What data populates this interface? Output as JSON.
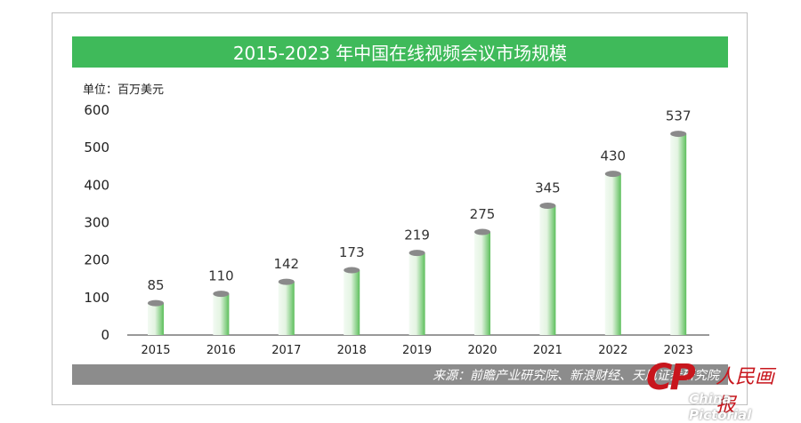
{
  "colors": {
    "title_bg": "#3fba5a",
    "bar_light": "#f2faf2",
    "bar_dark": "#5dbf5c",
    "cap": "#8a8a8a",
    "source_bg": "#8c8c8c",
    "watermark": "#c8161d"
  },
  "header": {
    "title": "2015-2023 年中国在线视频会议市场规模"
  },
  "unit_label": "单位：百万美元",
  "source": "来源：前瞻产业研究院、新浪财经、天风证券研究院",
  "watermark": {
    "mark": "CP",
    "text": "人民画报",
    "sub": "China Pictorial"
  },
  "chart_data": {
    "type": "bar",
    "title": "2015-2023 年中国在线视频会议市场规模",
    "ylabel": "单位：百万美元",
    "categories": [
      "2015",
      "2016",
      "2017",
      "2018",
      "2019",
      "2020",
      "2021",
      "2022",
      "2023"
    ],
    "values": [
      85,
      110,
      142,
      173,
      219,
      275,
      345,
      430,
      537
    ],
    "yticks": [
      0,
      100,
      200,
      300,
      400,
      500,
      600
    ],
    "ylim": [
      0,
      600
    ],
    "grid": false,
    "legend": "none"
  }
}
